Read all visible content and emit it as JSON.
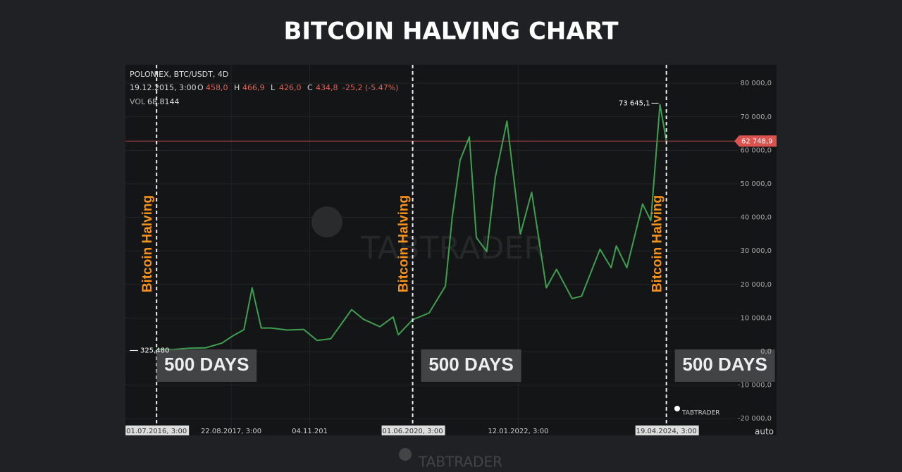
{
  "chart_data": {
    "type": "line",
    "title": "BITCOIN HALVING CHART",
    "header": {
      "symbol": "POLONIEX, BTC/USDT, 4D",
      "date": "19.12.2015, 3:00",
      "ohlc": [
        {
          "key": "O",
          "value": "458,0"
        },
        {
          "key": "H",
          "value": "466,9"
        },
        {
          "key": "L",
          "value": "426,0"
        },
        {
          "key": "C",
          "value": "434,8"
        }
      ],
      "change": "-25,2 (-5.47%)",
      "volume_key": "VOL",
      "volume": "68.8144"
    },
    "color": "#3f9e52",
    "x": [
      "2016-07-01",
      "2016-10-01",
      "2017-01-01",
      "2017-04-01",
      "2017-07-01",
      "2017-09-01",
      "2017-11-01",
      "2017-12-17",
      "2018-02-06",
      "2018-04-01",
      "2018-07-01",
      "2018-10-01",
      "2018-12-15",
      "2019-03-01",
      "2019-06-26",
      "2019-09-01",
      "2019-12-01",
      "2020-02-13",
      "2020-03-13",
      "2020-06-01",
      "2020-09-01",
      "2020-12-01",
      "2021-01-08",
      "2021-02-21",
      "2021-04-14",
      "2021-05-23",
      "2021-07-20",
      "2021-09-06",
      "2021-11-10",
      "2022-01-24",
      "2022-03-28",
      "2022-06-18",
      "2022-08-14",
      "2022-11-09",
      "2023-01-01",
      "2023-04-14",
      "2023-06-15",
      "2023-07-14",
      "2023-09-11",
      "2023-12-08",
      "2024-01-23",
      "2024-03-14",
      "2024-04-19"
    ],
    "values": [
      650,
      610,
      1000,
      1100,
      2500,
      4700,
      6500,
      19000,
      7000,
      7000,
      6400,
      6600,
      3300,
      3800,
      12500,
      9600,
      7400,
      10300,
      5000,
      9500,
      11500,
      19500,
      40000,
      57000,
      64000,
      34000,
      29800,
      52000,
      68700,
      35000,
      47500,
      19000,
      24500,
      15800,
      16500,
      30500,
      25000,
      31500,
      25000,
      44000,
      39000,
      73645.1,
      62748.9
    ],
    "xlim": [
      "2016-01-09",
      "2025-05-27"
    ],
    "xticks": [
      {
        "value": "2016-07-01",
        "label": "01.07.2016, 3:00"
      },
      {
        "value": "2017-08-22",
        "label": "22.08.2017, 3:00"
      },
      {
        "value": "2018-11-04",
        "label": "04.11.201"
      },
      {
        "value": "2020-06-01",
        "label": "01.06.2020, 3:00"
      },
      {
        "value": "2022-01-12",
        "label": "12.01.2022, 3:00"
      },
      {
        "value": "2024-04-19",
        "label": "19.04.2024, 3:00"
      }
    ],
    "ylim": [
      -25000,
      85500
    ],
    "yticks": [
      {
        "value": 80000,
        "label": "80 000,0"
      },
      {
        "value": 70000,
        "label": "70 000,0"
      },
      {
        "value": 60000,
        "label": "60 000,0"
      },
      {
        "value": 50000,
        "label": "50 000,0"
      },
      {
        "value": 40000,
        "label": "40 000,0"
      },
      {
        "value": 30000,
        "label": "30 000,0"
      },
      {
        "value": 20000,
        "label": "20 000,0"
      },
      {
        "value": 10000,
        "label": "10 000,0"
      },
      {
        "value": 0,
        "label": "0,0"
      },
      {
        "value": -10000,
        "label": "-10 000,0"
      },
      {
        "value": -20000,
        "label": "-20 000,0"
      }
    ],
    "grid": true,
    "current_price": {
      "value": 62748.9,
      "label": "62 748,9"
    },
    "high_label": {
      "value": 73645.1,
      "label": "73 645,1"
    },
    "low_label": {
      "value": 325.48,
      "label": "325,480"
    },
    "halvings": [
      {
        "x": "2016-07-01",
        "label": "Bitcoin Halving",
        "note": "500 DAYS"
      },
      {
        "x": "2020-06-01",
        "label": "Bitcoin Halving",
        "note": "500 DAYS"
      },
      {
        "x": "2024-04-19",
        "label": "Bitcoin Halving",
        "note": "500 DAYS"
      }
    ],
    "scale_mode": "auto",
    "watermark": "TABTRADER"
  }
}
